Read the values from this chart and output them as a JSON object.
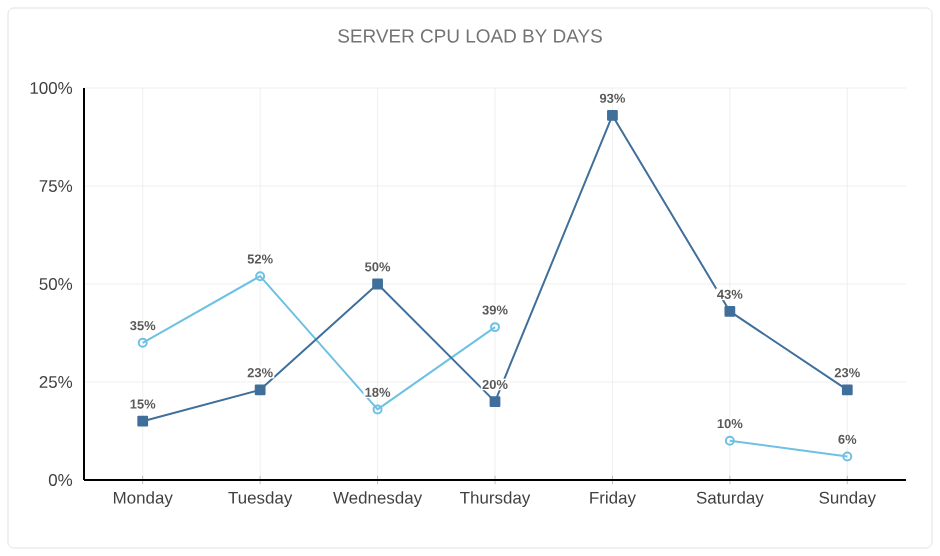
{
  "chart_data": {
    "type": "line",
    "title": "SERVER CPU LOAD BY DAYS",
    "categories": [
      "Monday",
      "Tuesday",
      "Wednesday",
      "Thursday",
      "Friday",
      "Saturday",
      "Sunday"
    ],
    "series": [
      {
        "color": "#6ec1e4",
        "marker": "circle",
        "values": [
          35,
          52,
          18,
          39,
          null,
          10,
          6
        ],
        "value_labels": [
          "35%",
          "52%",
          "18%",
          "39%",
          null,
          "10%",
          "6%"
        ]
      },
      {
        "color": "#3f6f9a",
        "marker": "square",
        "values": [
          15,
          23,
          50,
          20,
          93,
          43,
          23
        ],
        "value_labels": [
          "15%",
          "23%",
          "50%",
          "20%",
          "93%",
          "43%",
          "23%"
        ]
      }
    ],
    "ylim": [
      0,
      100
    ],
    "yticks": [
      {
        "value": 0,
        "label": "0%"
      },
      {
        "value": 25,
        "label": "25%"
      },
      {
        "value": 50,
        "label": "50%"
      },
      {
        "value": 75,
        "label": "75%"
      },
      {
        "value": 100,
        "label": "100%"
      }
    ],
    "grid": true
  }
}
